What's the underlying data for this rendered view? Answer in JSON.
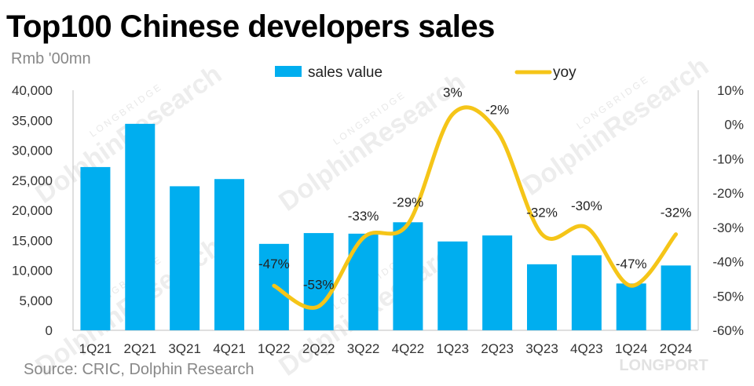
{
  "title": "Top100 Chinese developers sales",
  "unit_label": "Rmb '00mn",
  "source": "Source: CRIC, Dolphin Research",
  "watermarks": [
    "DolphinResearch",
    "LONGBRIDGE",
    "LONGPORT"
  ],
  "colors": {
    "bar": "#00AEEF",
    "line": "#F5C518"
  },
  "chart_data": {
    "type": "bar+line",
    "categories": [
      "1Q21",
      "2Q21",
      "3Q21",
      "4Q21",
      "1Q22",
      "2Q22",
      "3Q22",
      "4Q22",
      "1Q23",
      "2Q23",
      "3Q23",
      "4Q23",
      "1Q24",
      "2Q24"
    ],
    "series": [
      {
        "name": "sales value",
        "type": "bar",
        "axis": "left",
        "values": [
          27200,
          34400,
          24000,
          25200,
          14400,
          16200,
          16100,
          18000,
          14800,
          15800,
          11000,
          12500,
          7800,
          10800
        ]
      },
      {
        "name": "yoy",
        "type": "line",
        "axis": "right",
        "values": [
          null,
          null,
          null,
          null,
          -47,
          -53,
          -33,
          -29,
          3,
          -2,
          -32,
          -30,
          -47,
          -32
        ],
        "labels": [
          "",
          "",
          "",
          "",
          "-47%",
          "-53%",
          "-33%",
          "-29%",
          "3%",
          "-2%",
          "-32%",
          "-30%",
          "-47%",
          "-32%"
        ]
      }
    ],
    "y_left": {
      "min": 0,
      "max": 40000,
      "ticks": [
        "0",
        "5,000",
        "10,000",
        "15,000",
        "20,000",
        "25,000",
        "30,000",
        "35,000",
        "40,000"
      ]
    },
    "y_right": {
      "min": -60,
      "max": 10,
      "ticks": [
        "-60%",
        "-50%",
        "-40%",
        "-30%",
        "-20%",
        "-10%",
        "0%",
        "10%"
      ]
    },
    "legend": [
      "sales value",
      "yoy"
    ],
    "legend_position": "top-center"
  }
}
